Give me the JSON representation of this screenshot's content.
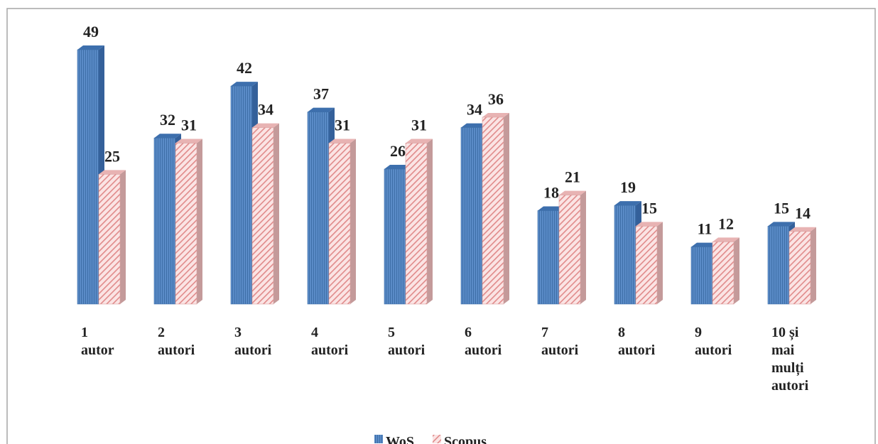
{
  "chart_data": {
    "type": "bar3d",
    "categories": [
      "1\nautor",
      "2\nautori",
      "3\nautori",
      "4\nautori",
      "5\nautori",
      "6\nautori",
      "7\nautori",
      "8\nautori",
      "9\nautori",
      "10 și\nmai\nmulți\nautori"
    ],
    "series": [
      {
        "name": "WoS",
        "color": "#4f81bd",
        "values": [
          49,
          32,
          42,
          37,
          26,
          34,
          18,
          19,
          11,
          15
        ]
      },
      {
        "name": "Scopus",
        "color": "#f2c4c4",
        "values": [
          25,
          31,
          34,
          31,
          31,
          36,
          21,
          15,
          12,
          14
        ]
      }
    ],
    "legend": "bottom"
  }
}
